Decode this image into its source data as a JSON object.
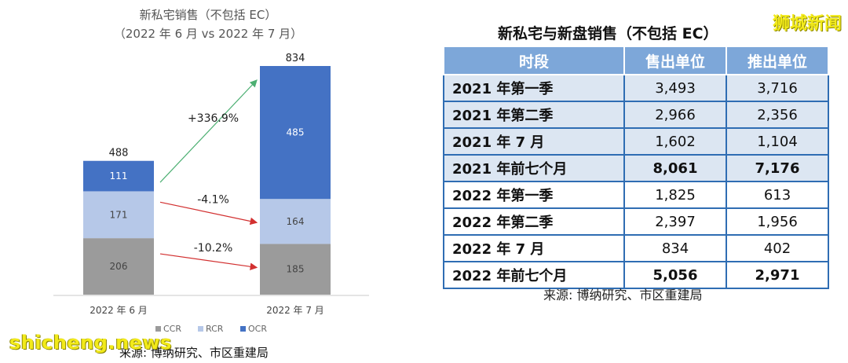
{
  "chart_data": {
    "type": "bar",
    "stacked": true,
    "title": "新私宅销售（不包括 EC）",
    "subtitle": "（2022 年 6 月 vs 2022 年 7 月）",
    "categories": [
      "2022 年 6 月",
      "2022 年 7 月"
    ],
    "series": [
      {
        "name": "CCR",
        "values": [
          206,
          185
        ],
        "color": "#9b9b9b"
      },
      {
        "name": "RCR",
        "values": [
          171,
          164
        ],
        "color": "#b6c8e8"
      },
      {
        "name": "OCR",
        "values": [
          111,
          485
        ],
        "color": "#4472c4"
      }
    ],
    "totals": [
      488,
      834
    ],
    "annotations": [
      {
        "text": "+336.9%",
        "series": "OCR",
        "color": "#4caf72"
      },
      {
        "text": "-4.1%",
        "series": "RCR",
        "color": "#d23030"
      },
      {
        "text": "-10.2%",
        "series": "CCR",
        "color": "#d23030"
      }
    ],
    "legend_position": "bottom",
    "grid": false
  },
  "left_source": "来源: 博纳研究、市区重建局",
  "watermark_left": "shicheng.news",
  "watermark_right": "狮城新闻",
  "table": {
    "title": "新私宅与新盘销售（不包括 EC）",
    "headers": [
      "时段",
      "售出单位",
      "推出单位"
    ],
    "rows": [
      {
        "period": "2021 年第一季",
        "sold": "3,493",
        "launched": "3,716",
        "shaded": true,
        "bold": false
      },
      {
        "period": "2021 年第二季",
        "sold": "2,966",
        "launched": "2,356",
        "shaded": true,
        "bold": false
      },
      {
        "period": "2021 年 7 月",
        "sold": "1,602",
        "launched": "1,104",
        "shaded": true,
        "bold": false
      },
      {
        "period": "2021 年前七个月",
        "sold": "8,061",
        "launched": "7,176",
        "shaded": true,
        "bold": true
      },
      {
        "period": "2022 年第一季",
        "sold": "1,825",
        "launched": "613",
        "shaded": false,
        "bold": false
      },
      {
        "period": "2022 年第二季",
        "sold": "2,397",
        "launched": "1,956",
        "shaded": false,
        "bold": false
      },
      {
        "period": "2022 年 7 月",
        "sold": "834",
        "launched": "402",
        "shaded": false,
        "bold": false
      },
      {
        "period": "2022 年前七个月",
        "sold": "5,056",
        "launched": "2,971",
        "shaded": false,
        "bold": true
      }
    ],
    "source": "来源: 博纳研究、市区重建局"
  }
}
